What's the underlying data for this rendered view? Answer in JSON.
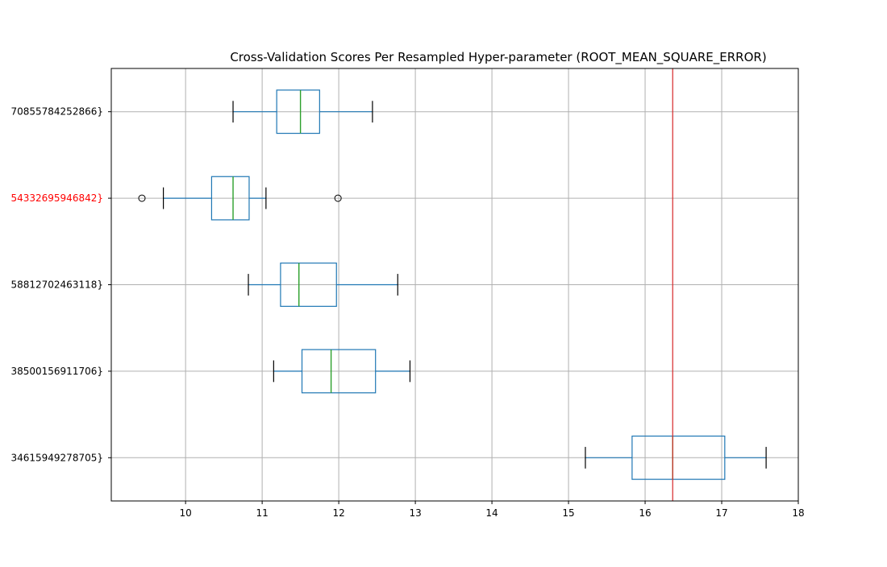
{
  "chart_data": {
    "type": "box",
    "orientation": "horizontal",
    "title": "Cross-Validation Scores Per Resampled Hyper-parameter (ROOT_MEAN_SQUARE_ERROR)",
    "xlabel": "",
    "ylabel": "",
    "xlim": [
      9.03,
      18.0
    ],
    "x_ticks": [
      10,
      11,
      12,
      13,
      14,
      15,
      16,
      17,
      18
    ],
    "grid": true,
    "reference_line": {
      "value": 16.36,
      "color": "#d62728"
    },
    "colors": {
      "box": "#1f77b4",
      "median": "#2ca02c",
      "whisker_cap": "#000000",
      "highlight_label": "#ff0000",
      "grid": "#b0b0b0"
    },
    "series": [
      {
        "label": "70855784252866}",
        "highlight": false,
        "whisker_low": 10.62,
        "q1": 11.19,
        "median": 11.5,
        "q3": 11.75,
        "whisker_high": 12.44,
        "outliers": []
      },
      {
        "label": "54332695946842}",
        "highlight": true,
        "whisker_low": 9.71,
        "q1": 10.34,
        "median": 10.62,
        "q3": 10.83,
        "whisker_high": 11.05,
        "outliers": [
          9.43,
          11.99
        ]
      },
      {
        "label": "58812702463118}",
        "highlight": false,
        "whisker_low": 10.82,
        "q1": 11.24,
        "median": 11.48,
        "q3": 11.97,
        "whisker_high": 12.77,
        "outliers": []
      },
      {
        "label": "38500156911706}",
        "highlight": false,
        "whisker_low": 11.15,
        "q1": 11.52,
        "median": 11.9,
        "q3": 12.48,
        "whisker_high": 12.93,
        "outliers": []
      },
      {
        "label": "34615949278705}",
        "highlight": false,
        "whisker_low": 15.22,
        "q1": 15.83,
        "median": 16.36,
        "q3": 17.04,
        "whisker_high": 17.58,
        "outliers": []
      }
    ]
  }
}
